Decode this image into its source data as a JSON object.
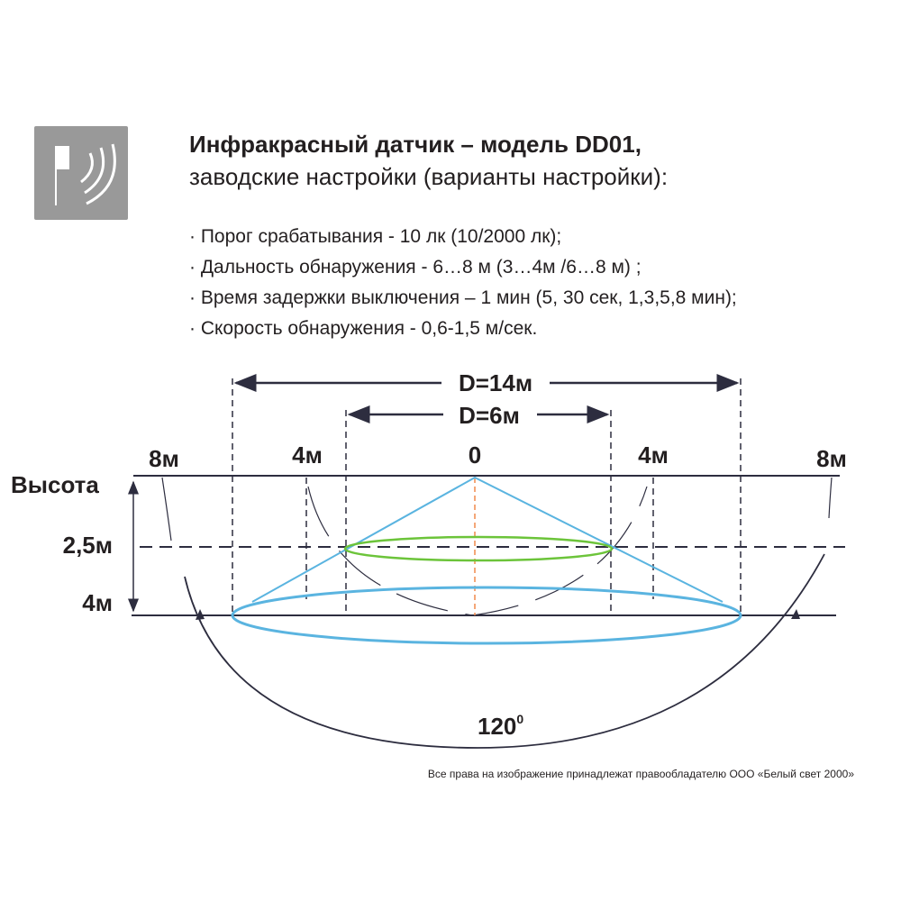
{
  "header": {
    "title": "Инфракрасный датчик  – модель DD01,",
    "subtitle": "заводские настройки (варианты настройки):",
    "icon": "motion-sensor-icon"
  },
  "specs": [
    "· Порог срабатывания - 10 лк (10/2000 лк);",
    "· Дальность обнаружения - 6…8 м (3…4м /6…8 м) ;",
    "· Время задержки выключения – 1 мин (5, 30 сек, 1,3,5,8 мин);",
    "· Скорость обнаружения - 0,6-1,5 м/сек."
  ],
  "diagram": {
    "d_large": "D=14м",
    "d_small": "D=6м",
    "x_labels": [
      "8м",
      "4м",
      "0",
      "4м",
      "8м"
    ],
    "height_label": "Высота",
    "height_marks": [
      "2,5м",
      "4м"
    ],
    "angle": "120",
    "angle_unit": "0",
    "colors": {
      "cone": "#5ab4e0",
      "near_zone": "#6cc43a",
      "axis": "#f08a4b",
      "lines": "#2d2d3f"
    }
  },
  "footer": {
    "copyright": "Все права на изображение принадлежат правообладателю ООО «Белый свет 2000»"
  }
}
